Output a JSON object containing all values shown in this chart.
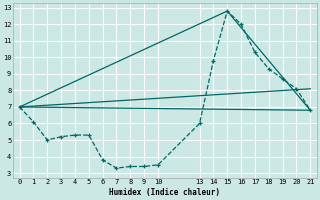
{
  "xlabel": "Humidex (Indice chaleur)",
  "bg_color": "#cce8e4",
  "grid_color": "#ffffff",
  "line_color": "#006666",
  "xtick_positions": [
    0,
    1,
    2,
    3,
    4,
    5,
    6,
    7,
    8,
    9,
    10,
    13,
    14,
    15,
    16,
    17,
    18,
    19,
    20,
    21
  ],
  "xtick_labels": [
    "0",
    "1",
    "2",
    "3",
    "4",
    "5",
    "6",
    "7",
    "8",
    "9",
    "10",
    "13",
    "14",
    "15",
    "16",
    "17",
    "18",
    "19",
    "20",
    "21"
  ],
  "yticks": [
    3,
    4,
    5,
    6,
    7,
    8,
    9,
    10,
    11,
    12,
    13
  ],
  "xlim": [
    -0.5,
    21.5
  ],
  "ylim": [
    2.7,
    13.3
  ],
  "curve_x": [
    0,
    1,
    2,
    3,
    4,
    5,
    6,
    7,
    8,
    9,
    10,
    13,
    14,
    15,
    16,
    17,
    18,
    19,
    20,
    21
  ],
  "curve_y": [
    7.0,
    6.1,
    5.0,
    5.2,
    5.3,
    5.3,
    3.8,
    3.3,
    3.4,
    3.4,
    3.5,
    6.0,
    9.8,
    12.8,
    12.0,
    10.3,
    9.3,
    8.7,
    8.1,
    6.8
  ],
  "line1_x": [
    0,
    21
  ],
  "line1_y": [
    7.0,
    6.8
  ],
  "line2_x": [
    0,
    21
  ],
  "line2_y": [
    7.0,
    8.1
  ],
  "line3_x": [
    0,
    15,
    21
  ],
  "line3_y": [
    7.0,
    12.8,
    6.8
  ]
}
